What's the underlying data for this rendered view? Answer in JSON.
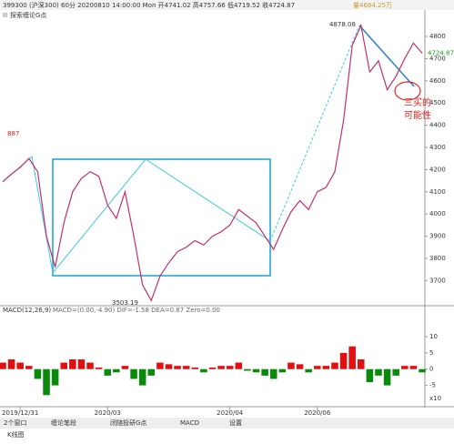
{
  "header": {
    "quote": "399300 (沪深300) 60分 20200810 14:00:00 Mon 开4741.02 高4757.66 低4719.52 收4724.87",
    "volume": "量4684.25万",
    "indicator": "探索缠论G点"
  },
  "chart_data": [
    {
      "type": "line",
      "color": "#c0306a",
      "values": [
        4145,
        4180,
        4210,
        4250,
        4190,
        3900,
        3760,
        3960,
        4100,
        4160,
        4190,
        4170,
        4040,
        3980,
        4100,
        3900,
        3680,
        3610,
        3720,
        3780,
        3830,
        3850,
        3880,
        3860,
        3900,
        3920,
        3950,
        4020,
        3990,
        3960,
        3900,
        3840,
        3930,
        4010,
        4060,
        4020,
        4100,
        4120,
        4190,
        4420,
        4760,
        4850,
        4640,
        4690,
        4560,
        4620,
        4700,
        4770,
        4725
      ],
      "xlim": [
        0,
        48
      ],
      "xticks": [
        {
          "value": 2,
          "label": "2019/12/31"
        },
        {
          "value": 12,
          "label": "2020/03"
        },
        {
          "value": 26,
          "label": "2020/04"
        },
        {
          "value": 36,
          "label": "2020/06"
        }
      ],
      "ylim": [
        3603,
        4915
      ],
      "yticks": [
        3700,
        3800,
        3900,
        4000,
        4100,
        4200,
        4300,
        4400,
        4500,
        4600,
        4700,
        4800
      ],
      "last_price": 4724.87,
      "annotations": [
        "4878.08",
        "3503.19",
        "887",
        "三买的",
        "可能性"
      ]
    },
    {
      "type": "bar",
      "title": "MACD(12,26,9)",
      "readout": "MACD=(0.00,-4.90)  DIF=-1.58  DEA=0.87  Zero=0.00",
      "positive_color": "#e01010",
      "negative_color": "#0a8a0a",
      "values": [
        2,
        3,
        2,
        1,
        -3,
        -8,
        -5,
        2,
        3,
        3,
        2,
        0.5,
        -2,
        -1,
        1,
        -3,
        -5,
        -2,
        2,
        1.5,
        1,
        1,
        0.5,
        -1,
        0.5,
        1,
        1,
        2,
        -0.5,
        -1,
        -2,
        -3,
        -1,
        2,
        1.5,
        -1,
        1,
        1,
        2,
        5,
        7,
        3,
        -4,
        -2,
        -5,
        -2,
        1,
        1,
        -1
      ],
      "xlim": [
        0,
        48
      ],
      "ylim": [
        -11,
        17
      ],
      "yticks": [
        -5,
        0,
        5,
        10
      ],
      "unit": "x10"
    }
  ],
  "tabs": [
    "2个窗口",
    "缠论笔段",
    "闭随投研G点",
    "MACD",
    "设置"
  ],
  "footer": "K线图"
}
